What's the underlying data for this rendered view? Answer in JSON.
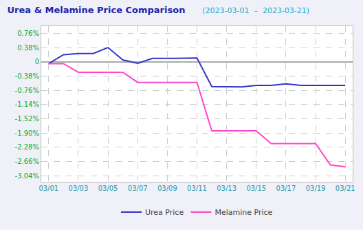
{
  "chart_data": {
    "type": "line",
    "title": "Urea & Melamine Price Comparison",
    "subtitle": "(2023-03-01  –  2023-03-21)",
    "categories": [
      "03/01",
      null,
      "03/03",
      null,
      "03/05",
      null,
      "03/07",
      null,
      "03/09",
      null,
      "03/11",
      null,
      "03/13",
      null,
      "03/15",
      null,
      "03/17",
      null,
      "03/19",
      null,
      "03/21"
    ],
    "series": [
      {
        "name": "Urea Price",
        "color": "#3333cc",
        "values": [
          -0.05,
          0.19,
          0.22,
          0.22,
          0.38,
          0.05,
          -0.04,
          0.09,
          0.09,
          0.1,
          0.1,
          -0.66,
          -0.66,
          -0.67,
          -0.63,
          -0.63,
          -0.59,
          -0.63,
          -0.63,
          -0.63,
          -0.63
        ]
      },
      {
        "name": "Melamine Price",
        "color": "#ff44cc",
        "values": [
          -0.05,
          -0.05,
          -0.28,
          -0.28,
          -0.28,
          -0.28,
          -0.55,
          -0.55,
          -0.55,
          -0.55,
          -0.55,
          -1.84,
          -1.84,
          -1.84,
          -1.84,
          -2.18,
          -2.18,
          -2.18,
          -2.18,
          -2.75,
          -2.8
        ]
      }
    ],
    "ylim": [
      -3.2,
      0.95
    ],
    "yticks": [
      {
        "value": 0.76,
        "label": "0.76%"
      },
      {
        "value": 0.38,
        "label": "0.38%"
      },
      0,
      {
        "value": -0.38,
        "label": "-0.38%"
      },
      {
        "value": -0.76,
        "label": "-0.76%"
      },
      {
        "value": -1.14,
        "label": "-1.14%"
      },
      {
        "value": -1.52,
        "label": "-1.52%"
      },
      {
        "value": -1.9,
        "label": "-1.90%"
      },
      {
        "value": -2.28,
        "label": "-2.28%"
      },
      {
        "value": -2.66,
        "label": "-2.66%"
      },
      {
        "value": -3.04,
        "label": "-3.04%"
      }
    ],
    "grid": true,
    "legend": "bottom"
  }
}
